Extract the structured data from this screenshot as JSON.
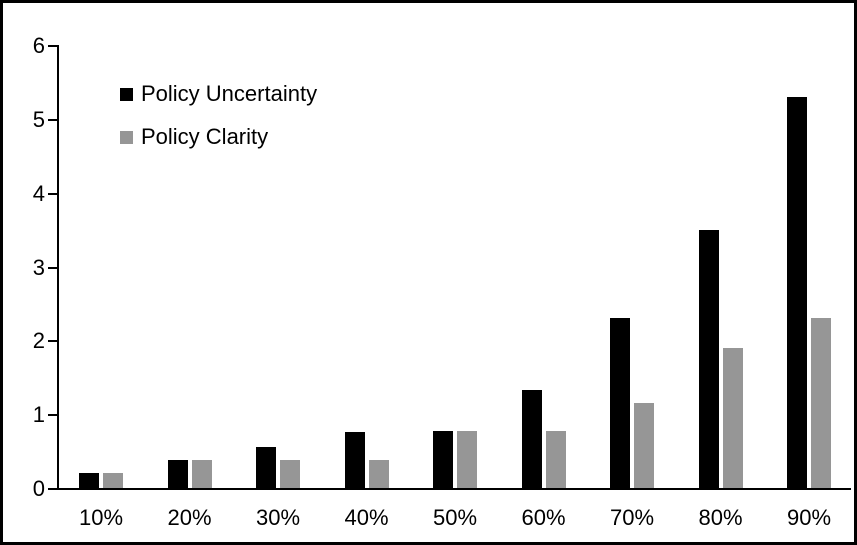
{
  "figure": {
    "background_color": "#ffffff",
    "frame_color": "#000000",
    "text_color": "#000000"
  },
  "chart_data": {
    "type": "bar",
    "title": "",
    "xlabel": "",
    "ylabel": "",
    "categories": [
      "10%",
      "20%",
      "30%",
      "40%",
      "50%",
      "60%",
      "70%",
      "80%",
      "90%"
    ],
    "series": [
      {
        "name": "Policy Uncertainty",
        "color": "#000000",
        "values": [
          0.2,
          0.38,
          0.55,
          0.76,
          0.77,
          1.33,
          2.3,
          3.5,
          5.3
        ]
      },
      {
        "name": "Policy Clarity",
        "color": "#969696",
        "values": [
          0.2,
          0.38,
          0.38,
          0.38,
          0.77,
          0.77,
          1.15,
          1.9,
          2.3
        ]
      }
    ],
    "ylim": [
      0,
      6
    ],
    "yticks": [
      0,
      1,
      2,
      3,
      4,
      5,
      6
    ],
    "grid": false,
    "legend_position": "top-left-inside",
    "legend_swatch": "filled-square"
  }
}
